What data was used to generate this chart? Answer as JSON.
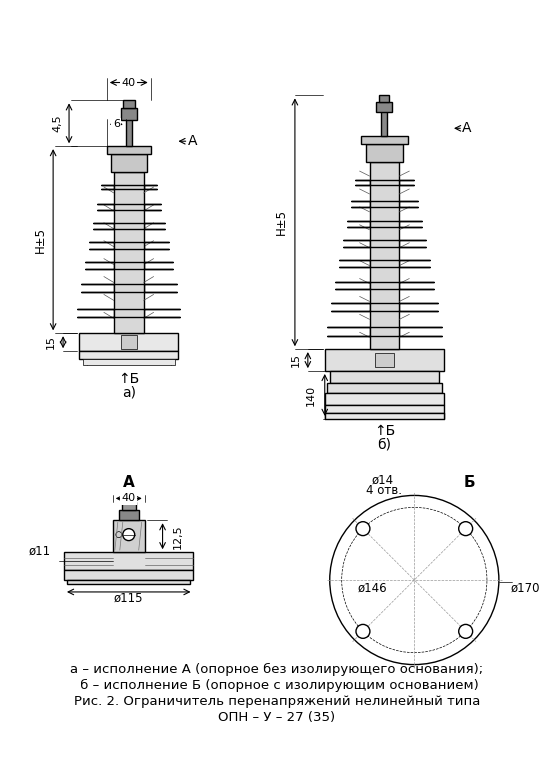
{
  "bg_color": "#ffffff",
  "line_color": "#000000",
  "line_width": 1.0,
  "thin_line": 0.5,
  "caption_lines": [
    "а – исполнение А (опорное без изолирующего основания);",
    " б – исполнение Б (опорное с изолирующим основанием)",
    "Рис. 2. Ограничитель перенапряжений нелинейный типа",
    "ОПН – У – 27 (35)"
  ],
  "font_size_caption": 9.5,
  "font_size_dim": 8.5,
  "font_size_label": 10
}
